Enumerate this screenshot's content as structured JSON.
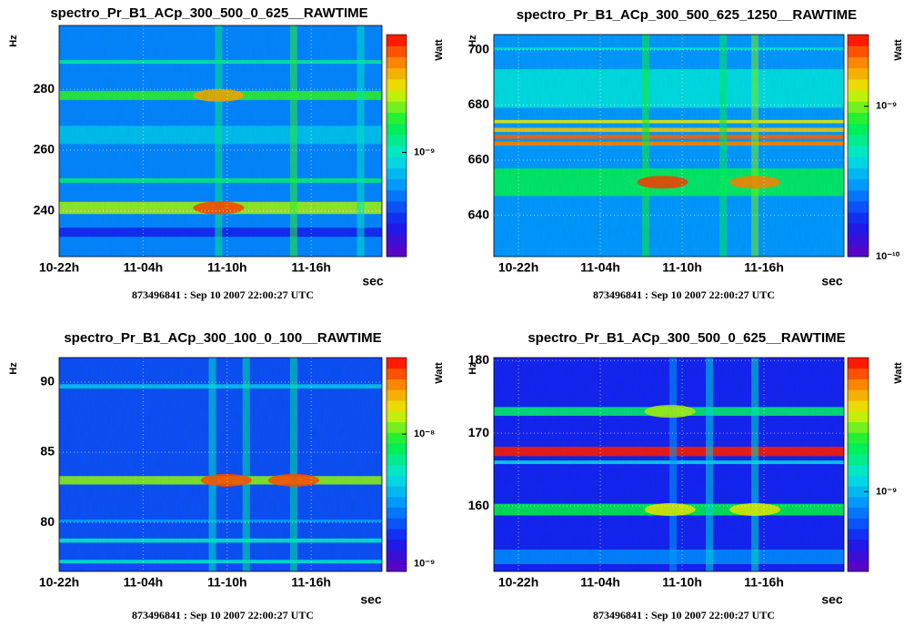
{
  "chart_data": [
    {
      "type": "heatmap",
      "title": "spectro_Pr_B1_ACp_300_500_0_625__RAWTIME",
      "xlabel": "sec",
      "ylabel": "Hz",
      "zlabel": "Watt",
      "footnote": "873496841 : Sep 10 2007 22:00:27 UTC",
      "xlim": [
        0,
        83000
      ],
      "xticks": [
        {
          "value": 0,
          "label": "10-22h"
        },
        {
          "value": 21600,
          "label": "11-04h"
        },
        {
          "value": 43200,
          "label": "11-10h"
        },
        {
          "value": 64800,
          "label": "11-16h"
        }
      ],
      "ylim": [
        225,
        301
      ],
      "yticks": [
        240,
        260,
        280
      ],
      "zlim": [
        2.5e-10,
        4.8e-09
      ],
      "zlog": true,
      "zticks": [
        {
          "value": 1e-09,
          "label": "10⁻⁹"
        }
      ],
      "background": 6e-10,
      "bands": [
        {
          "freq": 241,
          "width": 4,
          "level": 2e-09
        },
        {
          "freq": 250,
          "width": 1.5,
          "level": 1.2e-09
        },
        {
          "freq": 278,
          "width": 3,
          "level": 1.6e-09
        },
        {
          "freq": 289,
          "width": 1.2,
          "level": 1.1e-09
        },
        {
          "freq": 265,
          "width": 6,
          "level": 8e-10
        },
        {
          "freq": 233,
          "width": 3,
          "level": 4e-10
        }
      ],
      "events": [
        {
          "time": 41000,
          "level": 1.2e-09
        },
        {
          "time": 60300,
          "level": 1.6e-09
        },
        {
          "time": 77500,
          "level": 1e-09
        }
      ],
      "hotspots": [
        {
          "time": 41000,
          "freq": 241,
          "level": 4e-09
        },
        {
          "time": 41000,
          "freq": 278,
          "level": 3e-09
        }
      ]
    },
    {
      "type": "heatmap",
      "title": "spectro_Pr_B1_ACp_300_500_625_1250__RAWTIME",
      "xlabel": "sec",
      "ylabel": "Hz",
      "zlabel": "Watt",
      "footnote": "873496841 : Sep 10 2007 22:00:27 UTC",
      "xlim": [
        -6500,
        85900
      ],
      "xticks": [
        {
          "value": 0,
          "label": "10-22h"
        },
        {
          "value": 21600,
          "label": "11-04h"
        },
        {
          "value": 43200,
          "label": "11-10h"
        },
        {
          "value": 64800,
          "label": "11-16h"
        }
      ],
      "ylim": [
        625,
        705.6
      ],
      "yticks": [
        640,
        660,
        680,
        700
      ],
      "zlim": [
        1e-10,
        3e-09
      ],
      "zlog": true,
      "zticks": [
        {
          "value": 1e-09,
          "label": "10⁻⁹"
        },
        {
          "value": 1e-10,
          "label": "10⁻¹⁰"
        }
      ],
      "background": 3e-10,
      "bands": [
        {
          "freq": 686,
          "width": 14,
          "level": 4.5e-10
        },
        {
          "freq": 652,
          "width": 10,
          "level": 7e-10
        },
        {
          "freq": 666,
          "width": 1.5,
          "level": 2e-09
        },
        {
          "freq": 668.5,
          "width": 1.5,
          "level": 2.2e-09
        },
        {
          "freq": 671,
          "width": 1.5,
          "level": 1.5e-09
        },
        {
          "freq": 674,
          "width": 1.2,
          "level": 1.3e-09
        },
        {
          "freq": 700.5,
          "width": 0.8,
          "level": 5e-10
        }
      ],
      "events": [
        {
          "time": 33600,
          "level": 8e-10
        },
        {
          "time": 54000,
          "level": 7e-10
        },
        {
          "time": 62400,
          "level": 1e-09
        }
      ],
      "hotspots": [
        {
          "time": 38000,
          "freq": 652,
          "level": 2.5e-09
        },
        {
          "time": 62400,
          "freq": 652,
          "level": 2e-09
        }
      ]
    },
    {
      "type": "heatmap",
      "title": "spectro_Pr_B1_ACp_300_100_0_100__RAWTIME",
      "xlabel": "sec",
      "ylabel": "Hz",
      "zlabel": "Watt",
      "footnote": "873496841 : Sep 10 2007 22:00:27 UTC",
      "xlim": [
        0,
        83000
      ],
      "xticks": [
        {
          "value": 0,
          "label": "10-22h"
        },
        {
          "value": 21600,
          "label": "11-04h"
        },
        {
          "value": 43200,
          "label": "11-10h"
        },
        {
          "value": 64800,
          "label": "11-16h"
        }
      ],
      "ylim": [
        76.5,
        91.75
      ],
      "yticks": [
        80,
        85,
        90
      ],
      "zlim": [
        8.7e-10,
        3.9e-08
      ],
      "zlog": true,
      "zticks": [
        {
          "value": 1e-08,
          "label": "10⁻⁸"
        },
        {
          "value": 1e-09,
          "label": "10⁻⁹"
        }
      ],
      "background": 2e-09,
      "bands": [
        {
          "freq": 83,
          "width": 0.6,
          "level": 1.2e-08
        },
        {
          "freq": 78.7,
          "width": 0.3,
          "level": 5e-09
        },
        {
          "freq": 77.2,
          "width": 0.25,
          "level": 5e-09
        },
        {
          "freq": 89.7,
          "width": 0.3,
          "level": 4e-09
        },
        {
          "freq": 80.1,
          "width": 0.2,
          "level": 3e-09
        }
      ],
      "events": [
        {
          "time": 39400,
          "level": 5e-09
        },
        {
          "time": 48100,
          "level": 6e-09
        },
        {
          "time": 60300,
          "level": 6e-09
        }
      ],
      "hotspots": [
        {
          "time": 43000,
          "freq": 83,
          "level": 3e-08
        },
        {
          "time": 60300,
          "freq": 83,
          "level": 3e-08
        }
      ]
    },
    {
      "type": "heatmap",
      "title": "spectro_Pr_B1_ACp_300_500_0_625__RAWTIME",
      "xlabel": "sec",
      "ylabel": "Hz",
      "zlabel": "Watt",
      "footnote": "873496841 : Sep 10 2007 22:00:27 UTC",
      "xlim": [
        -6500,
        85900
      ],
      "xticks": [
        {
          "value": 0,
          "label": "10-22h"
        },
        {
          "value": 21600,
          "label": "11-04h"
        },
        {
          "value": 43200,
          "label": "11-10h"
        },
        {
          "value": 64800,
          "label": "11-16h"
        }
      ],
      "ylim": [
        151,
        180.4
      ],
      "yticks": [
        160,
        170,
        180
      ],
      "zlim": [
        3e-10,
        7.6e-09
      ],
      "zlog": true,
      "zticks": [
        {
          "value": 1e-09,
          "label": "10⁻⁹"
        }
      ],
      "background": 5e-10,
      "bands": [
        {
          "freq": 167.5,
          "width": 1.3,
          "level": 7e-09
        },
        {
          "freq": 173,
          "width": 1.2,
          "level": 1.8e-09
        },
        {
          "freq": 159.5,
          "width": 1.6,
          "level": 2e-09
        },
        {
          "freq": 166,
          "width": 0.5,
          "level": 1.2e-09
        },
        {
          "freq": 153,
          "width": 2,
          "level": 8e-10
        }
      ],
      "events": [
        {
          "time": 40800,
          "level": 9e-10
        },
        {
          "time": 50400,
          "level": 1.2e-09
        },
        {
          "time": 62400,
          "level": 1.4e-09
        }
      ],
      "hotspots": [
        {
          "time": 40000,
          "freq": 159.5,
          "level": 3.5e-09
        },
        {
          "time": 40000,
          "freq": 173,
          "level": 3e-09
        },
        {
          "time": 62400,
          "freq": 159.5,
          "level": 3.5e-09
        }
      ]
    }
  ]
}
